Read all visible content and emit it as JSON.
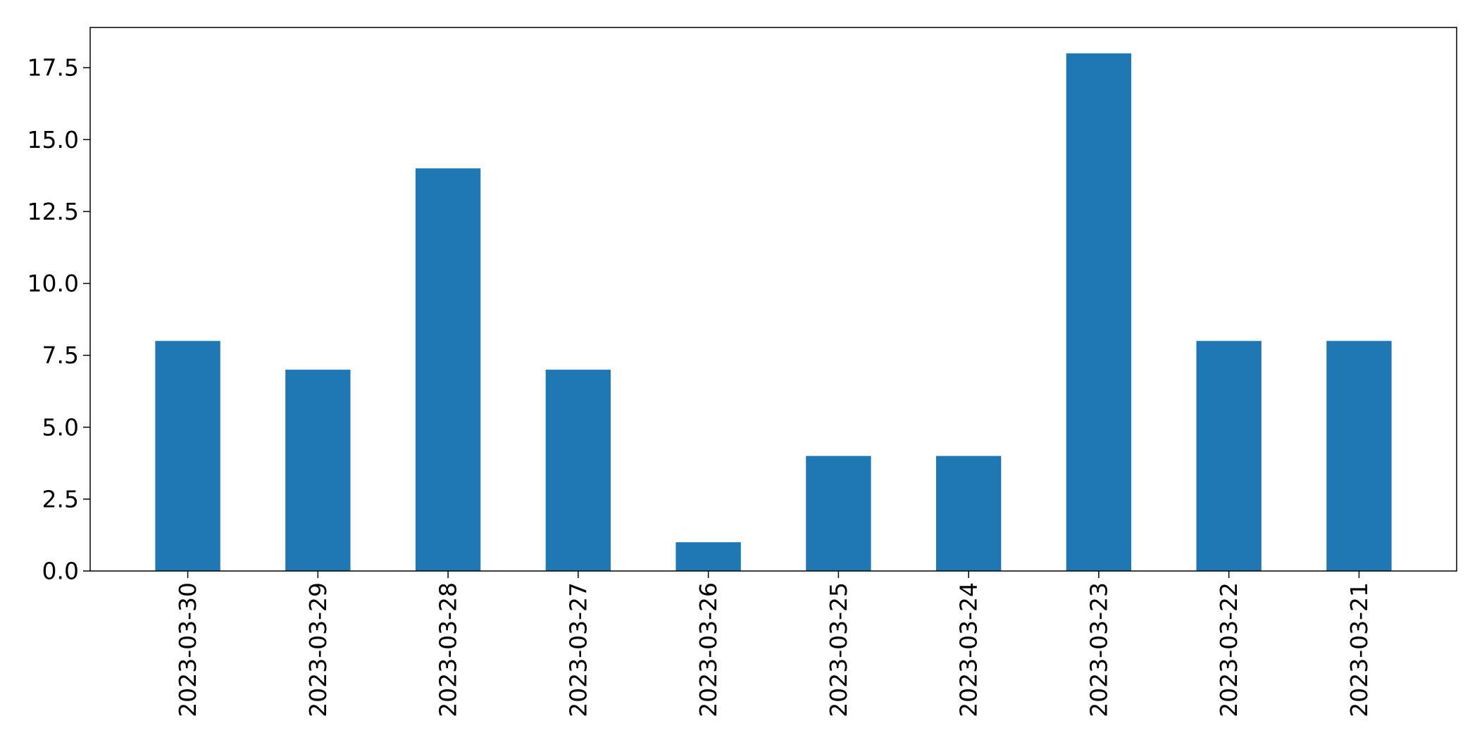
{
  "chart_data": {
    "type": "bar",
    "title": "",
    "xlabel": "",
    "ylabel": "",
    "categories": [
      "2023-03-30",
      "2023-03-29",
      "2023-03-28",
      "2023-03-27",
      "2023-03-26",
      "2023-03-25",
      "2023-03-24",
      "2023-03-23",
      "2023-03-22",
      "2023-03-21"
    ],
    "values": [
      8,
      7,
      14,
      7,
      1,
      4,
      4,
      18,
      8,
      8
    ],
    "ylim": [
      0,
      18.9
    ],
    "yticks": [
      "0.0",
      "2.5",
      "5.0",
      "7.5",
      "10.0",
      "12.5",
      "15.0",
      "17.5"
    ],
    "bar_color": "#1f77b4",
    "grid": false,
    "legend": "none"
  }
}
